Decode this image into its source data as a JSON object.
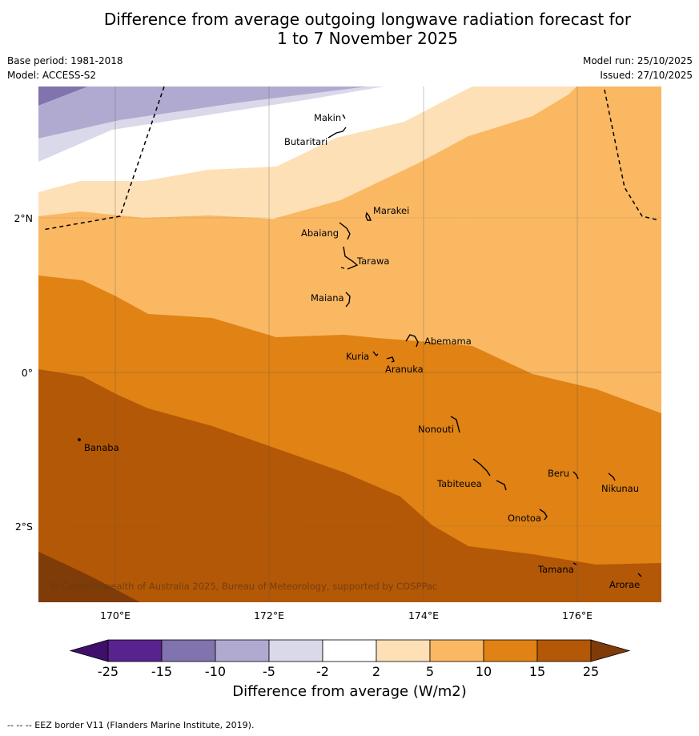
{
  "header": {
    "title_line1": "Difference from average outgoing longwave radiation forecast for",
    "title_line2": "1 to 7 November 2025",
    "base_period": "Base period: 1981-2018",
    "model": "Model: ACCESS-S2",
    "model_run": "Model run: 25/10/2025",
    "issued": "Issued: 27/10/2025"
  },
  "map": {
    "copyright": "© Commonwealth of Australia 2025, Bureau of Meteorology, supported by COSPPac",
    "lon_labels": [
      "170°E",
      "172°E",
      "174°E",
      "176°E"
    ],
    "lat_labels": [
      "2°N",
      "0°",
      "2°S"
    ],
    "places": [
      "Makin",
      "Butaritari",
      "Marakei",
      "Abaiang",
      "Tarawa",
      "Maiana",
      "Abemama",
      "Kuria",
      "Aranuka",
      "Banaba",
      "Nonouti",
      "Beru",
      "Nikunau",
      "Tabiteuea",
      "Onotoa",
      "Tamana",
      "Arorae"
    ]
  },
  "colorbar": {
    "title": "Difference from average (W/m2)",
    "tick_labels": [
      "-25",
      "-15",
      "-10",
      "-5",
      "-2",
      "2",
      "5",
      "10",
      "15",
      "25"
    ],
    "colors": [
      "#3f0f6b",
      "#58238d",
      "#8173ad",
      "#b1aad0",
      "#d9d9ea",
      "#ffffff",
      "#fee0b6",
      "#fab863",
      "#e08214",
      "#b35806",
      "#7f3b08"
    ]
  },
  "footer": {
    "legend_text": "--  --  -- EEZ border V11 (Flanders Marine Institute, 2019)."
  }
}
